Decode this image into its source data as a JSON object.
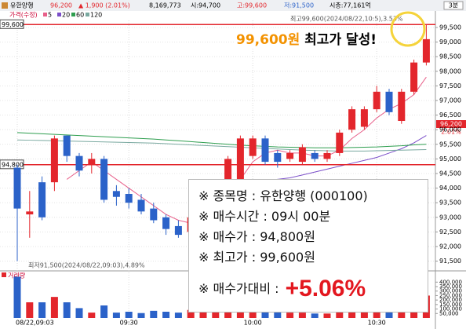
{
  "header": {
    "name": "유한양행",
    "price": "96,200",
    "change": "▲ 1,900 (2.01%)",
    "volume": "8,169,773",
    "open": "시:94,700",
    "high": "고:99,600",
    "low": "저:91,500",
    "cap": "시총:77,161억",
    "interval": "3분"
  },
  "chart_data": {
    "type": "candlestick",
    "price_label": "가격(수정)",
    "categories": [
      "08/22,09:03",
      null,
      null,
      null,
      null,
      null,
      null,
      null,
      null,
      "09:30",
      null,
      null,
      null,
      null,
      null,
      null,
      null,
      null,
      null,
      "10:00",
      null,
      null,
      null,
      null,
      null,
      null,
      null,
      null,
      null,
      "10:30",
      null,
      null,
      null,
      null
    ],
    "open": [
      94700,
      93100,
      94200,
      94200,
      95800,
      95100,
      94800,
      95000,
      93900,
      93800,
      93600,
      93300,
      93000,
      92700,
      92500,
      93200,
      93600,
      94300,
      94300,
      95100,
      95700,
      95200,
      95000,
      94900,
      95200,
      95000,
      95200,
      96000,
      96100,
      96700,
      97300,
      96300,
      97300,
      98300
    ],
    "high": [
      94800,
      93900,
      94400,
      95800,
      95800,
      95200,
      95200,
      95100,
      94100,
      94000,
      93800,
      93500,
      93100,
      92900,
      93100,
      93700,
      94300,
      95100,
      95800,
      95800,
      95800,
      95300,
      95300,
      95500,
      95300,
      95300,
      96000,
      96800,
      96800,
      97500,
      97400,
      97400,
      98400,
      99600
    ],
    "low": [
      91500,
      92300,
      92900,
      93900,
      94900,
      94400,
      94500,
      93500,
      93400,
      93300,
      93100,
      92800,
      92400,
      92300,
      92400,
      93000,
      93500,
      94100,
      94200,
      95000,
      94800,
      94700,
      94900,
      94800,
      94900,
      94900,
      95100,
      95900,
      96000,
      96600,
      96500,
      96200,
      97200,
      98200
    ],
    "close": [
      93300,
      93200,
      93000,
      95700,
      95100,
      94600,
      95000,
      93600,
      93700,
      93500,
      93200,
      92900,
      92600,
      92400,
      93000,
      93600,
      94200,
      95000,
      95700,
      95700,
      94900,
      94900,
      95200,
      95400,
      95000,
      95200,
      95900,
      96700,
      96700,
      97300,
      96600,
      97300,
      98300,
      99100
    ],
    "up_color": "#e3262c",
    "down_color": "#2b62c9",
    "ylim": [
      91300,
      99650
    ],
    "yticks": [
      {
        "value": 91500,
        "label": "91,500"
      },
      {
        "value": 92000,
        "label": "92,000"
      },
      {
        "value": 92500,
        "label": "92,500"
      },
      {
        "value": 93000,
        "label": "93,000"
      },
      {
        "value": 93500,
        "label": "93,500"
      },
      {
        "value": 94000,
        "label": "94,000"
      },
      {
        "value": 94500,
        "label": "94,500"
      },
      {
        "value": 95000,
        "label": "95,000"
      },
      {
        "value": 95500,
        "label": "95,500"
      },
      {
        "value": 96000,
        "label": "96,000"
      },
      {
        "value": 96500,
        "label": "96,500"
      },
      {
        "value": 97000,
        "label": "97,000"
      },
      {
        "value": 97500,
        "label": "97,500"
      },
      {
        "value": 98000,
        "label": "98,000"
      },
      {
        "value": 98500,
        "label": "98,500"
      },
      {
        "value": 99000,
        "label": "99,000"
      },
      {
        "value": 99500,
        "label": "99,500"
      }
    ],
    "grid": true,
    "moving_averages": [
      {
        "name": "5",
        "color": "#e8608a",
        "values": [
          null,
          null,
          null,
          null,
          94300,
          94600,
          94900,
          94600,
          94300,
          94000,
          93700,
          93400,
          93100,
          92900,
          92800,
          92900,
          93200,
          93700,
          94300,
          94900,
          95200,
          95300,
          95200,
          95200,
          95100,
          95100,
          95300,
          95700,
          96000,
          96400,
          96700,
          96900,
          97200,
          97800
        ]
      },
      {
        "name": "20",
        "color": "#7b4fc9",
        "values": [
          null,
          null,
          null,
          null,
          null,
          null,
          null,
          null,
          null,
          null,
          null,
          null,
          null,
          null,
          null,
          null,
          null,
          null,
          null,
          94200,
          94250,
          94300,
          94350,
          94450,
          94550,
          94650,
          94750,
          94850,
          94950,
          95050,
          95200,
          95350,
          95550,
          95800
        ]
      },
      {
        "name": "60",
        "color": "#2e9e4f",
        "values": [
          95900,
          95880,
          95860,
          95840,
          95820,
          95800,
          95780,
          95760,
          95740,
          95720,
          95700,
          95680,
          95650,
          95620,
          95590,
          95560,
          95530,
          95500,
          95470,
          95450,
          95430,
          95410,
          95400,
          95390,
          95380,
          95380,
          95380,
          95390,
          95400,
          95410,
          95430,
          95450,
          95480,
          95500
        ]
      },
      {
        "name": "120",
        "color": "#7aa9a0",
        "values": [
          95650,
          95640,
          95630,
          95620,
          95610,
          95600,
          95590,
          95580,
          95570,
          95560,
          95550,
          95540,
          95520,
          95500,
          95480,
          95460,
          95440,
          95420,
          95400,
          95380,
          95360,
          95340,
          95320,
          95300,
          95290,
          95280,
          95270,
          95270,
          95270,
          95280,
          95290,
          95300,
          95310,
          95320
        ]
      }
    ],
    "hlines": [
      {
        "value": 99600,
        "label": "99,600"
      },
      {
        "value": 94800,
        "label": "94,800"
      }
    ],
    "high_note": "최고99,600(2024/08/22,10:5),3.53%",
    "low_note": "최저91,500(2024/08/22,09:03),4.89%",
    "last_price": "96,200",
    "last_change": "2.01%",
    "highlight": {
      "amount": "99,600원",
      "text": "최고가 달성!"
    },
    "volume": {
      "title": "거래량",
      "values": [
        460000,
        175000,
        175000,
        235000,
        175000,
        110000,
        60000,
        140000,
        60000,
        70000,
        55000,
        80000,
        70000,
        60000,
        90000,
        80000,
        100000,
        150000,
        130000,
        110000,
        120000,
        70000,
        60000,
        60000,
        50000,
        50000,
        90000,
        110000,
        100000,
        130000,
        90000,
        120000,
        180000,
        250000
      ],
      "ylim": [
        0,
        420000
      ],
      "yticks": [
        {
          "value": 50000,
          "label": "50,000"
        },
        {
          "value": 100000,
          "label": "100,000"
        },
        {
          "value": 150000,
          "label": "150,000"
        },
        {
          "value": 200000,
          "label": "200,000"
        },
        {
          "value": 250000,
          "label": "250,000"
        },
        {
          "value": 300000,
          "label": "300,000"
        },
        {
          "value": 350000,
          "label": "350,000"
        },
        {
          "value": 400000,
          "label": "400,000"
        }
      ]
    }
  },
  "info_box": {
    "lines": [
      "※ 종목명 : 유한양행 (000100)",
      "※ 매수시간 : 09시 00분",
      "※ 매수가 : 94,800원",
      "※ 최고가 : 99,600원"
    ],
    "compare_label": "※ 매수가대비 :",
    "compare_value": "+5.06%"
  }
}
